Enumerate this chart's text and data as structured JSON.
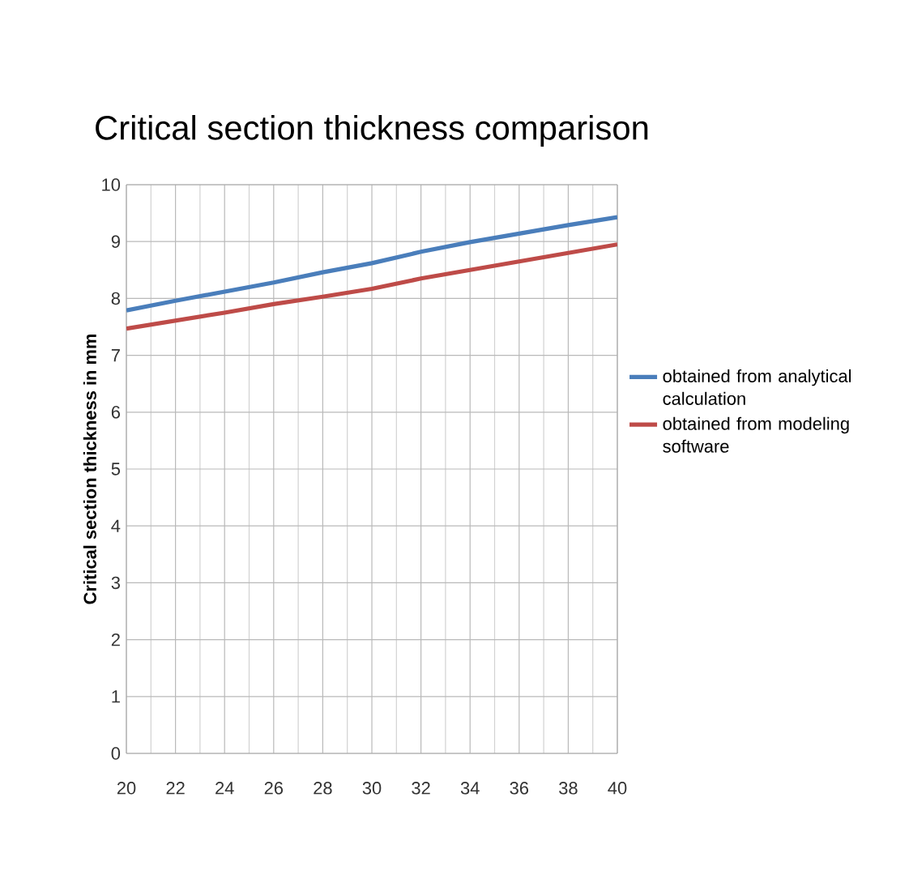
{
  "chart_data": {
    "type": "line",
    "title": "Critical section thickness comparison",
    "ylabel": "Critical section thickness in mm",
    "x": [
      20,
      22,
      24,
      26,
      28,
      30,
      32,
      34,
      36,
      38,
      40
    ],
    "series": [
      {
        "name": "obtained from analytical calculation",
        "color": "#4a7ebb",
        "values": [
          7.79,
          7.96,
          8.12,
          8.28,
          8.46,
          8.62,
          8.82,
          8.99,
          9.14,
          9.29,
          9.43
        ]
      },
      {
        "name": "obtained from modeling software",
        "color": "#be4b48",
        "values": [
          7.47,
          7.61,
          7.75,
          7.9,
          8.03,
          8.17,
          8.35,
          8.5,
          8.65,
          8.8,
          8.95
        ]
      }
    ],
    "xlim": [
      20,
      40
    ],
    "xticks": [
      20,
      22,
      24,
      26,
      28,
      30,
      32,
      34,
      36,
      38,
      40
    ],
    "ylim": [
      0,
      10
    ],
    "yticks": [
      0,
      1,
      2,
      3,
      4,
      5,
      6,
      7,
      8,
      9,
      10
    ],
    "grid": true,
    "legend": "right",
    "marker": "none",
    "line_style": "solid"
  }
}
